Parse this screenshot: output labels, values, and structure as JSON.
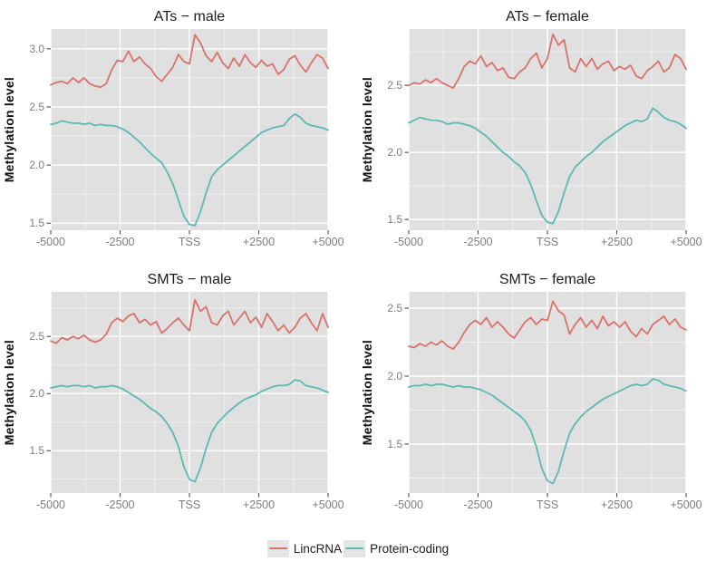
{
  "figure": {
    "background": "#ffffff",
    "panel_background": "#e0e0e0",
    "grid_major_color": "#ffffff",
    "grid_minor_color": "rgba(255,255,255,0.55)",
    "tick_mark_color": "#4d4d4d",
    "axis_text_color": "#7e7e7e",
    "title_color": "#1c1c1c"
  },
  "legend": {
    "position": "bottom",
    "items": [
      {
        "label": "LincRNA",
        "color": "#d9726b"
      },
      {
        "label": "Protein-coding",
        "color": "#5cb8b2"
      }
    ]
  },
  "chart_data": [
    {
      "type": "line",
      "title": "ATs − male",
      "xlabel": "",
      "ylabel": "Methylation level",
      "xlim": [
        -5000,
        5000
      ],
      "ylim": [
        1.44,
        3.17
      ],
      "x_tick_values": [
        -5000,
        -2500,
        0,
        2500,
        5000
      ],
      "x_ticks": [
        "-5000",
        "-2500",
        "TSS",
        "+2500",
        "+5000"
      ],
      "x_minor": [
        -3750,
        -1250,
        1250,
        3750
      ],
      "y_ticks": [
        1.5,
        2.0,
        2.5,
        3.0
      ],
      "y_tick_labels": [
        "1.5",
        "2.0",
        "2.5",
        "3.0"
      ],
      "y_minor": [
        1.75,
        2.25,
        2.75
      ],
      "x_start": -5000,
      "x_step": 200,
      "grid": true,
      "series": [
        {
          "name": "LincRNA",
          "color": "#d9726b",
          "values": [
            2.69,
            2.71,
            2.72,
            2.7,
            2.75,
            2.71,
            2.75,
            2.7,
            2.68,
            2.67,
            2.7,
            2.82,
            2.9,
            2.89,
            2.98,
            2.89,
            2.93,
            2.87,
            2.83,
            2.76,
            2.72,
            2.78,
            2.84,
            2.95,
            2.89,
            2.87,
            3.12,
            3.05,
            2.94,
            2.89,
            2.97,
            2.88,
            2.83,
            2.92,
            2.85,
            2.95,
            2.88,
            2.84,
            2.9,
            2.85,
            2.87,
            2.78,
            2.82,
            2.91,
            2.94,
            2.86,
            2.8,
            2.88,
            2.95,
            2.92,
            2.83
          ]
        },
        {
          "name": "Protein-coding",
          "color": "#5cb8b2",
          "values": [
            2.35,
            2.36,
            2.38,
            2.37,
            2.36,
            2.36,
            2.35,
            2.36,
            2.34,
            2.35,
            2.34,
            2.34,
            2.33,
            2.31,
            2.28,
            2.24,
            2.2,
            2.15,
            2.1,
            2.06,
            2.02,
            1.94,
            1.84,
            1.7,
            1.56,
            1.49,
            1.48,
            1.6,
            1.76,
            1.9,
            1.96,
            2.0,
            2.04,
            2.08,
            2.12,
            2.16,
            2.2,
            2.24,
            2.28,
            2.3,
            2.32,
            2.33,
            2.34,
            2.4,
            2.44,
            2.41,
            2.36,
            2.34,
            2.33,
            2.32,
            2.3
          ]
        }
      ]
    },
    {
      "type": "line",
      "title": "ATs − female",
      "xlabel": "",
      "ylabel": "Methylation level",
      "xlim": [
        -5000,
        5000
      ],
      "ylim": [
        1.42,
        2.92
      ],
      "x_tick_values": [
        -5000,
        -2500,
        0,
        2500,
        5000
      ],
      "x_ticks": [
        "-5000",
        "-2500",
        "TSS",
        "+2500",
        "+5000"
      ],
      "x_minor": [
        -3750,
        -1250,
        1250,
        3750
      ],
      "y_ticks": [
        1.5,
        2.0,
        2.5
      ],
      "y_tick_labels": [
        "1.5",
        "2.0",
        "2.5"
      ],
      "y_minor": [
        1.75,
        2.25,
        2.75
      ],
      "x_start": -5000,
      "x_step": 200,
      "grid": true,
      "series": [
        {
          "name": "LincRNA",
          "color": "#d9726b",
          "values": [
            2.5,
            2.52,
            2.51,
            2.54,
            2.52,
            2.55,
            2.52,
            2.5,
            2.48,
            2.55,
            2.64,
            2.68,
            2.66,
            2.72,
            2.64,
            2.67,
            2.61,
            2.63,
            2.56,
            2.55,
            2.6,
            2.63,
            2.7,
            2.74,
            2.63,
            2.7,
            2.88,
            2.8,
            2.84,
            2.63,
            2.6,
            2.7,
            2.64,
            2.7,
            2.62,
            2.66,
            2.68,
            2.61,
            2.64,
            2.62,
            2.65,
            2.57,
            2.55,
            2.61,
            2.64,
            2.68,
            2.6,
            2.63,
            2.73,
            2.7,
            2.62
          ]
        },
        {
          "name": "Protein-coding",
          "color": "#5cb8b2",
          "values": [
            2.22,
            2.24,
            2.26,
            2.25,
            2.24,
            2.24,
            2.23,
            2.21,
            2.22,
            2.22,
            2.21,
            2.2,
            2.18,
            2.15,
            2.12,
            2.08,
            2.04,
            2.0,
            1.97,
            1.93,
            1.9,
            1.85,
            1.76,
            1.64,
            1.53,
            1.48,
            1.47,
            1.56,
            1.7,
            1.82,
            1.89,
            1.93,
            1.97,
            2.0,
            2.04,
            2.08,
            2.11,
            2.14,
            2.17,
            2.2,
            2.22,
            2.24,
            2.23,
            2.25,
            2.33,
            2.3,
            2.26,
            2.24,
            2.23,
            2.21,
            2.18
          ]
        }
      ]
    },
    {
      "type": "line",
      "title": "SMTs − male",
      "xlabel": "",
      "ylabel": "Methylation level",
      "xlim": [
        -5000,
        5000
      ],
      "ylim": [
        1.13,
        2.89
      ],
      "x_tick_values": [
        -5000,
        -2500,
        0,
        2500,
        5000
      ],
      "x_ticks": [
        "-5000",
        "-2500",
        "TSS",
        "+2500",
        "+5000"
      ],
      "x_minor": [
        -3750,
        -1250,
        1250,
        3750
      ],
      "y_ticks": [
        1.5,
        2.0,
        2.5
      ],
      "y_tick_labels": [
        "1.5",
        "2.0",
        "2.5"
      ],
      "y_minor": [
        1.25,
        1.75,
        2.25,
        2.75
      ],
      "x_start": -5000,
      "x_step": 200,
      "grid": true,
      "series": [
        {
          "name": "LincRNA",
          "color": "#d9726b",
          "values": [
            2.46,
            2.44,
            2.49,
            2.47,
            2.5,
            2.48,
            2.51,
            2.47,
            2.45,
            2.47,
            2.52,
            2.62,
            2.66,
            2.63,
            2.68,
            2.7,
            2.62,
            2.65,
            2.6,
            2.63,
            2.53,
            2.57,
            2.62,
            2.66,
            2.6,
            2.55,
            2.82,
            2.72,
            2.76,
            2.62,
            2.6,
            2.68,
            2.72,
            2.6,
            2.66,
            2.72,
            2.62,
            2.67,
            2.58,
            2.7,
            2.63,
            2.55,
            2.6,
            2.53,
            2.58,
            2.66,
            2.7,
            2.62,
            2.55,
            2.7,
            2.58
          ]
        },
        {
          "name": "Protein-coding",
          "color": "#5cb8b2",
          "values": [
            2.05,
            2.06,
            2.07,
            2.06,
            2.07,
            2.07,
            2.06,
            2.07,
            2.05,
            2.06,
            2.06,
            2.07,
            2.06,
            2.04,
            2.01,
            1.98,
            1.95,
            1.91,
            1.87,
            1.84,
            1.8,
            1.74,
            1.66,
            1.54,
            1.36,
            1.25,
            1.23,
            1.35,
            1.52,
            1.66,
            1.74,
            1.79,
            1.84,
            1.88,
            1.92,
            1.95,
            1.97,
            1.99,
            2.02,
            2.04,
            2.06,
            2.07,
            2.07,
            2.08,
            2.12,
            2.11,
            2.07,
            2.06,
            2.05,
            2.03,
            2.01
          ]
        }
      ]
    },
    {
      "type": "line",
      "title": "SMTs − female",
      "xlabel": "",
      "ylabel": "Methylation level",
      "xlim": [
        -5000,
        5000
      ],
      "ylim": [
        1.14,
        2.62
      ],
      "x_tick_values": [
        -5000,
        -2500,
        0,
        2500,
        5000
      ],
      "x_ticks": [
        "-5000",
        "-2500",
        "TSS",
        "+2500",
        "+5000"
      ],
      "x_minor": [
        -3750,
        -1250,
        1250,
        3750
      ],
      "y_ticks": [
        1.5,
        2.0,
        2.5
      ],
      "y_tick_labels": [
        "1.5",
        "2.0",
        "2.5"
      ],
      "y_minor": [
        1.25,
        1.75,
        2.25
      ],
      "x_start": -5000,
      "x_step": 200,
      "grid": true,
      "series": [
        {
          "name": "LincRNA",
          "color": "#d9726b",
          "values": [
            2.22,
            2.21,
            2.24,
            2.22,
            2.25,
            2.23,
            2.26,
            2.22,
            2.2,
            2.25,
            2.32,
            2.38,
            2.41,
            2.38,
            2.43,
            2.36,
            2.4,
            2.36,
            2.31,
            2.28,
            2.34,
            2.4,
            2.43,
            2.38,
            2.42,
            2.41,
            2.55,
            2.48,
            2.45,
            2.31,
            2.38,
            2.43,
            2.36,
            2.41,
            2.35,
            2.44,
            2.37,
            2.4,
            2.36,
            2.4,
            2.33,
            2.29,
            2.35,
            2.31,
            2.38,
            2.41,
            2.44,
            2.38,
            2.42,
            2.36,
            2.34
          ]
        },
        {
          "name": "Protein-coding",
          "color": "#5cb8b2",
          "values": [
            1.92,
            1.93,
            1.93,
            1.94,
            1.93,
            1.94,
            1.94,
            1.93,
            1.92,
            1.93,
            1.92,
            1.92,
            1.91,
            1.9,
            1.88,
            1.86,
            1.83,
            1.8,
            1.77,
            1.74,
            1.71,
            1.67,
            1.6,
            1.48,
            1.32,
            1.23,
            1.21,
            1.3,
            1.45,
            1.58,
            1.65,
            1.7,
            1.74,
            1.77,
            1.8,
            1.83,
            1.85,
            1.87,
            1.89,
            1.91,
            1.93,
            1.94,
            1.93,
            1.94,
            1.98,
            1.97,
            1.94,
            1.93,
            1.92,
            1.91,
            1.89
          ]
        }
      ]
    }
  ]
}
